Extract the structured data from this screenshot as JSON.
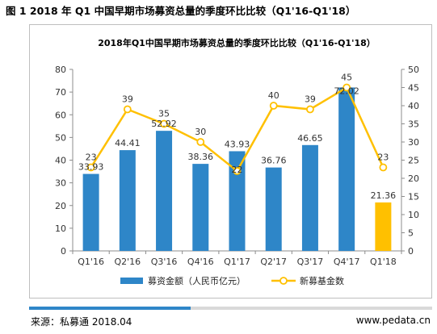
{
  "figure_caption": "图 1 2018 年 Q1 中国早期市场募资总量的季度环比比较（Q1'16-Q1'18）",
  "footer": {
    "source": "来源：私募通 2018.04",
    "site": "www.pedata.cn"
  },
  "chart_data": {
    "type": "bar",
    "title": "2018年Q1中国早期市场募资总量的季度环比比较（Q1'16-Q1'18）",
    "categories": [
      "Q1'16",
      "Q2'16",
      "Q3'16",
      "Q4'16",
      "Q1'17",
      "Q2'17",
      "Q3'17",
      "Q4'17",
      "Q1'18"
    ],
    "series": [
      {
        "name": "募资金额（人民币亿元）",
        "type": "bar",
        "axis": "left",
        "values": [
          33.93,
          44.41,
          52.92,
          38.36,
          43.93,
          36.76,
          46.65,
          72.02,
          21.36
        ],
        "data_labels": [
          "33.93",
          "44.41",
          "52.92",
          "38.36",
          "43.93",
          "36.76",
          "46.65",
          "72.02",
          "21.36"
        ],
        "color": "#2e86c8",
        "highlight_color": "#ffc000",
        "highlight_index": 8
      },
      {
        "name": "新募基金数",
        "type": "line",
        "axis": "right",
        "values": [
          23,
          39,
          35,
          30,
          22,
          40,
          39,
          45,
          23
        ],
        "data_labels": [
          "23",
          "39",
          "35",
          "30",
          "22",
          "40",
          "39",
          "45",
          "23"
        ],
        "color": "#ffc000"
      }
    ],
    "y_left": {
      "min": 0,
      "max": 80,
      "ticks": [
        "0",
        "10",
        "20",
        "30",
        "40",
        "50",
        "60",
        "70",
        "80"
      ]
    },
    "y_right": {
      "min": 0,
      "max": 50,
      "ticks": [
        "0",
        "5",
        "10",
        "15",
        "20",
        "25",
        "30",
        "35",
        "40",
        "45",
        "50"
      ]
    },
    "grid": false,
    "legend": "bottom"
  }
}
